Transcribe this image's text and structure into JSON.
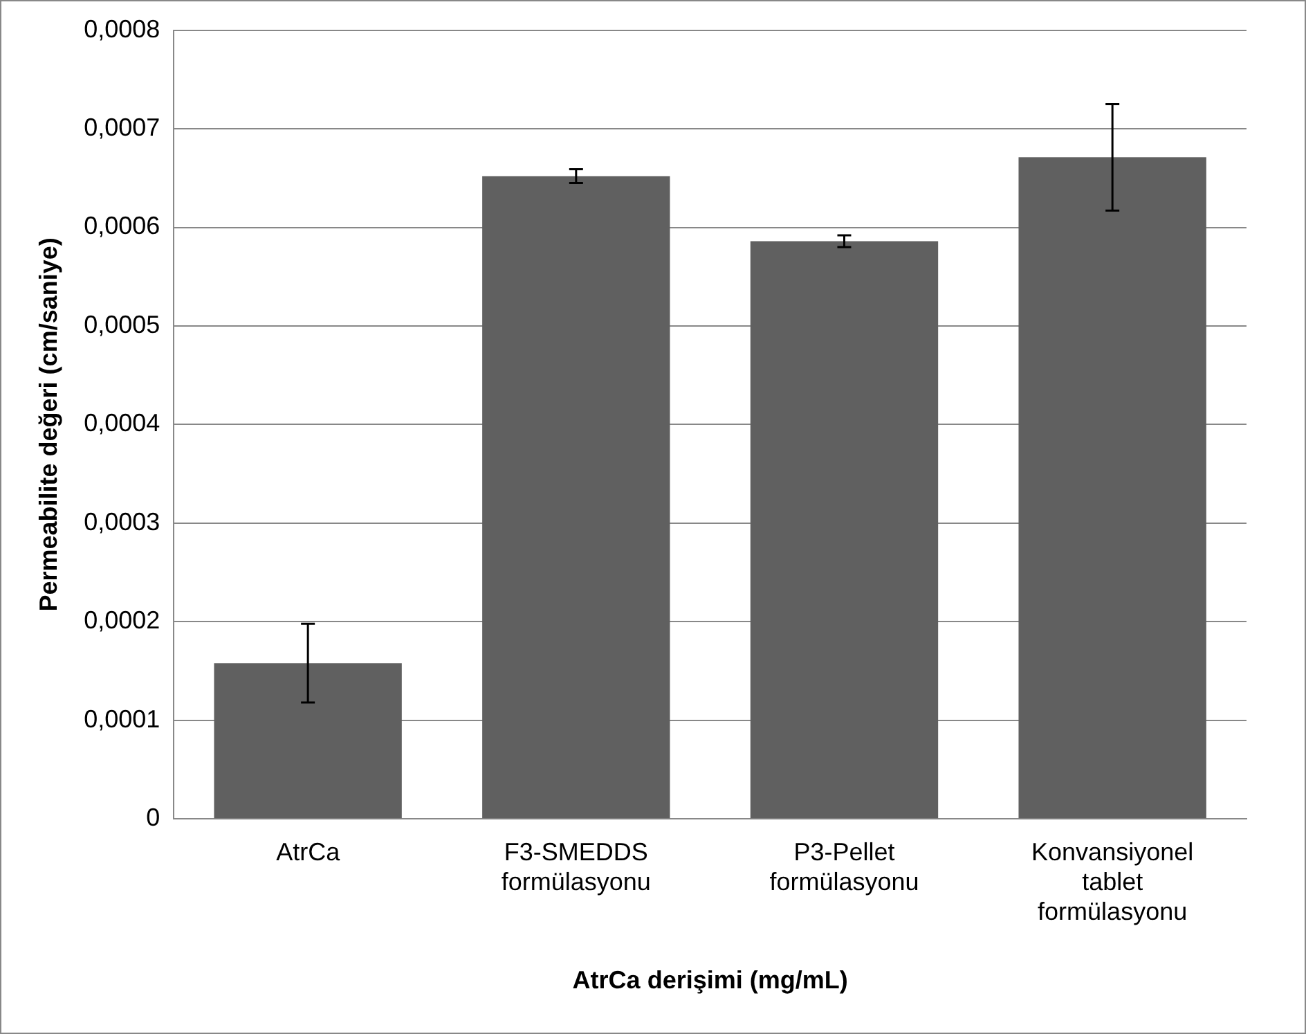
{
  "chart_data": {
    "type": "bar",
    "xlabel": "AtrCa derişimi (mg/mL)",
    "ylabel": "Permeabilite değeri (cm/saniye)",
    "categories": [
      "AtrCa",
      "F3-SMEDDS formülasyonu",
      "P3-Pellet formülasyonu",
      "Konvansiyonel tablet formülasyonu"
    ],
    "values": [
      0.000158,
      0.000652,
      0.000586,
      0.000671
    ],
    "errors": [
      4e-05,
      7e-06,
      6e-06,
      5.4e-05
    ],
    "color": "#606060",
    "ylim": [
      0,
      0.0008
    ],
    "yticks": [
      0,
      {
        "value": 0.0001,
        "label": "0,0001"
      },
      {
        "value": 0.0002,
        "label": "0,0002"
      },
      {
        "value": 0.0003,
        "label": "0,0003"
      },
      {
        "value": 0.0004,
        "label": "0,0004"
      },
      {
        "value": 0.0005,
        "label": "0,0005"
      },
      {
        "value": 0.0006,
        "label": "0,0006"
      },
      {
        "value": 0.0007,
        "label": "0,0007"
      },
      {
        "value": 0.0008,
        "label": "0,0008"
      }
    ],
    "grid": "y",
    "legend": false
  }
}
